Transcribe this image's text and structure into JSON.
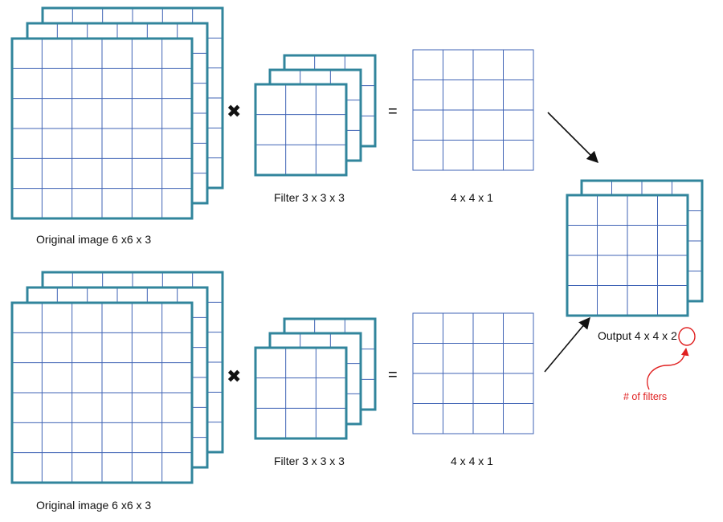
{
  "colors": {
    "stack_border": "#31859c",
    "grid_line": "#3f63b5",
    "arrow": "#111111",
    "annotation": "#e02020"
  },
  "rows": [
    {
      "image_caption": "Original image 6 x6 x 3",
      "operator_symbol": "✖",
      "filter_caption": "Filter 3 x 3 x 3",
      "equals_symbol": "=",
      "result_caption": "4 x 4 x 1"
    },
    {
      "image_caption": "Original image 6 x6 x 3",
      "operator_symbol": "✖",
      "filter_caption": "Filter 3 x 3 x 3",
      "equals_symbol": "=",
      "result_caption": "4 x 4 x 1"
    }
  ],
  "output": {
    "caption_prefix": "Output 4 x 4 x ",
    "depth_value": "2",
    "annotation": "# of filters"
  }
}
